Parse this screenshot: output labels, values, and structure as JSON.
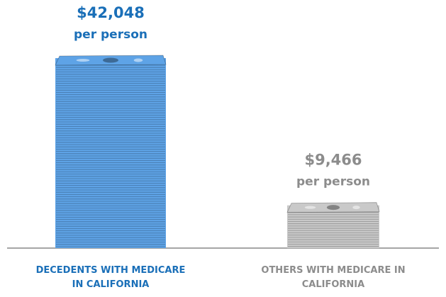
{
  "chart_data": {
    "type": "bar",
    "categories": [
      "DECEDENTS WITH MEDICARE IN CALIFORNIA",
      "OTHERS WITH MEDICARE IN CALIFORNIA"
    ],
    "values": [
      42048,
      9466
    ],
    "value_labels": [
      "$42,048",
      "$9,466"
    ],
    "unit_label": "per person",
    "colors": [
      "#5ea3e6",
      "#c9c9c9"
    ],
    "label_colors": [
      "#1a6fb8",
      "#8c8c8c"
    ]
  }
}
